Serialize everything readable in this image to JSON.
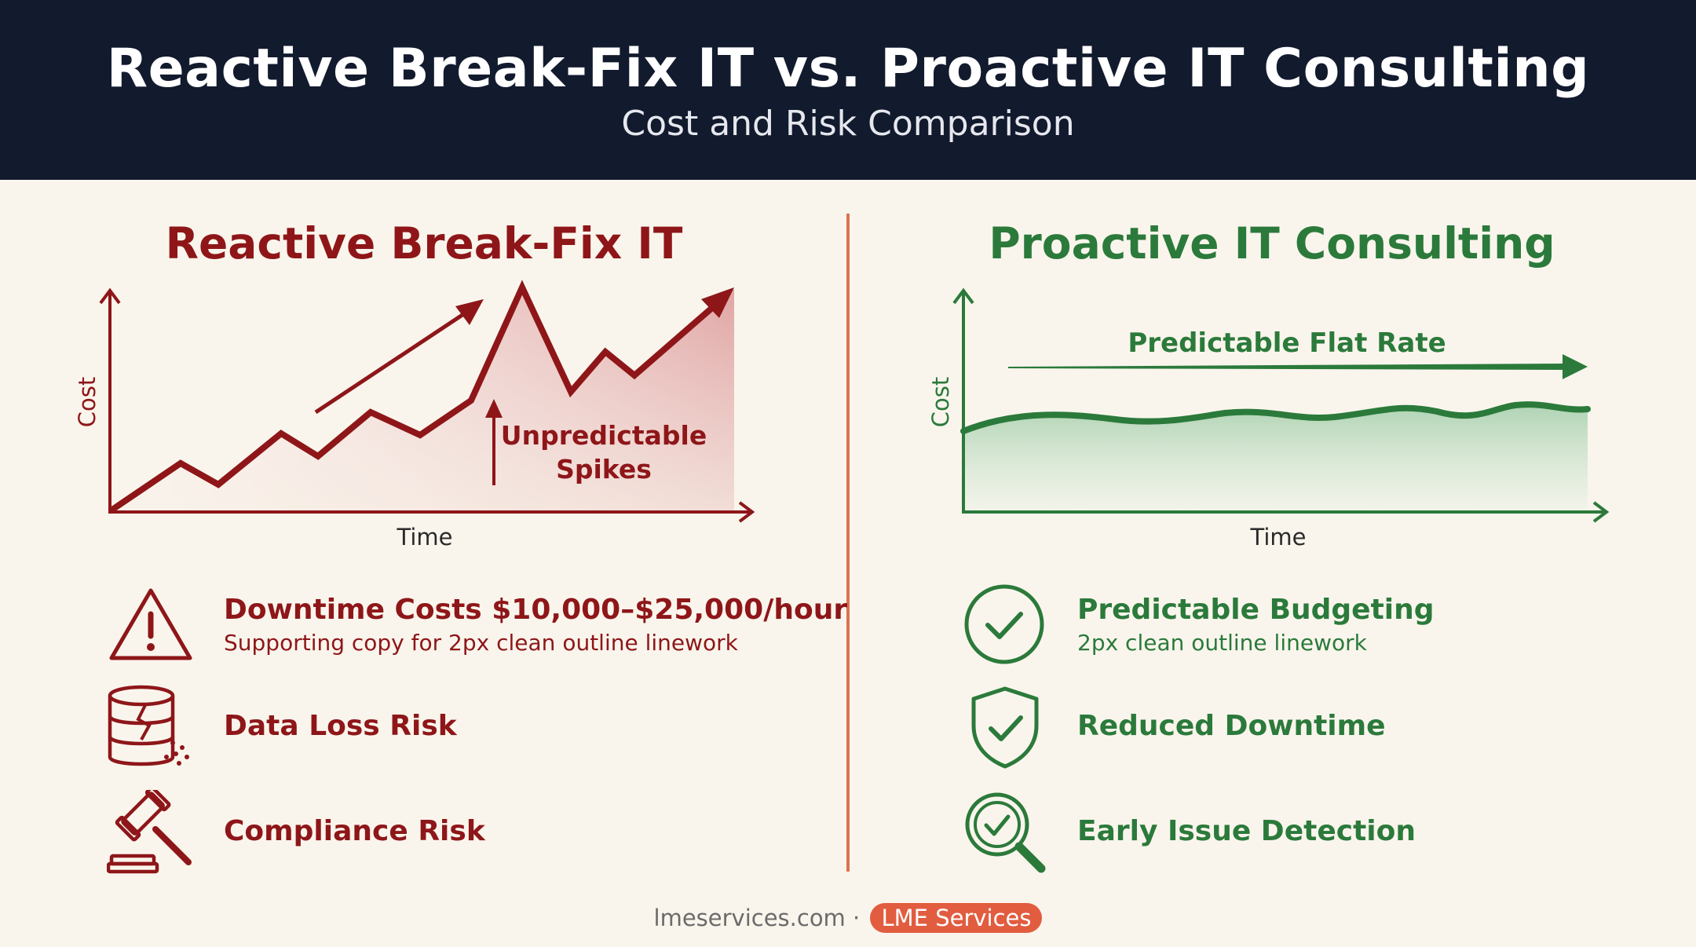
{
  "header": {
    "title": "Reactive Break-Fix IT vs. Proactive IT Consulting",
    "subtitle": "Cost and Risk Comparison"
  },
  "left": {
    "title": "Reactive Break-Fix IT",
    "chart": {
      "ylabel": "Cost",
      "xlabel": "Time",
      "annotation_line1": "Unpredictable",
      "annotation_line2": "Spikes"
    },
    "items": [
      {
        "icon": "warning-triangle-icon",
        "heading": "Downtime Costs $10,000–$25,000/hour",
        "subtext": "Supporting copy for 2px clean outline linework"
      },
      {
        "icon": "broken-database-icon",
        "heading": "Data Loss Risk"
      },
      {
        "icon": "gavel-icon",
        "heading": "Compliance Risk"
      }
    ]
  },
  "right": {
    "title": "Proactive IT Consulting",
    "chart": {
      "ylabel": "Cost",
      "xlabel": "Time",
      "annotation": "Predictable Flat Rate"
    },
    "items": [
      {
        "icon": "check-circle-icon",
        "heading": "Predictable Budgeting",
        "subtext": "2px clean outline linework"
      },
      {
        "icon": "shield-check-icon",
        "heading": "Reduced Downtime"
      },
      {
        "icon": "magnifier-check-icon",
        "heading": "Early Issue Detection"
      }
    ]
  },
  "footer": {
    "site": "lmeservices.com ·",
    "brand": "LME Services"
  },
  "colors": {
    "header_bg": "#121a2e",
    "reactive": "#8e1619",
    "proactive": "#2b7a3b",
    "divider": "#d97353",
    "brand_pill": "#e25c3f"
  }
}
